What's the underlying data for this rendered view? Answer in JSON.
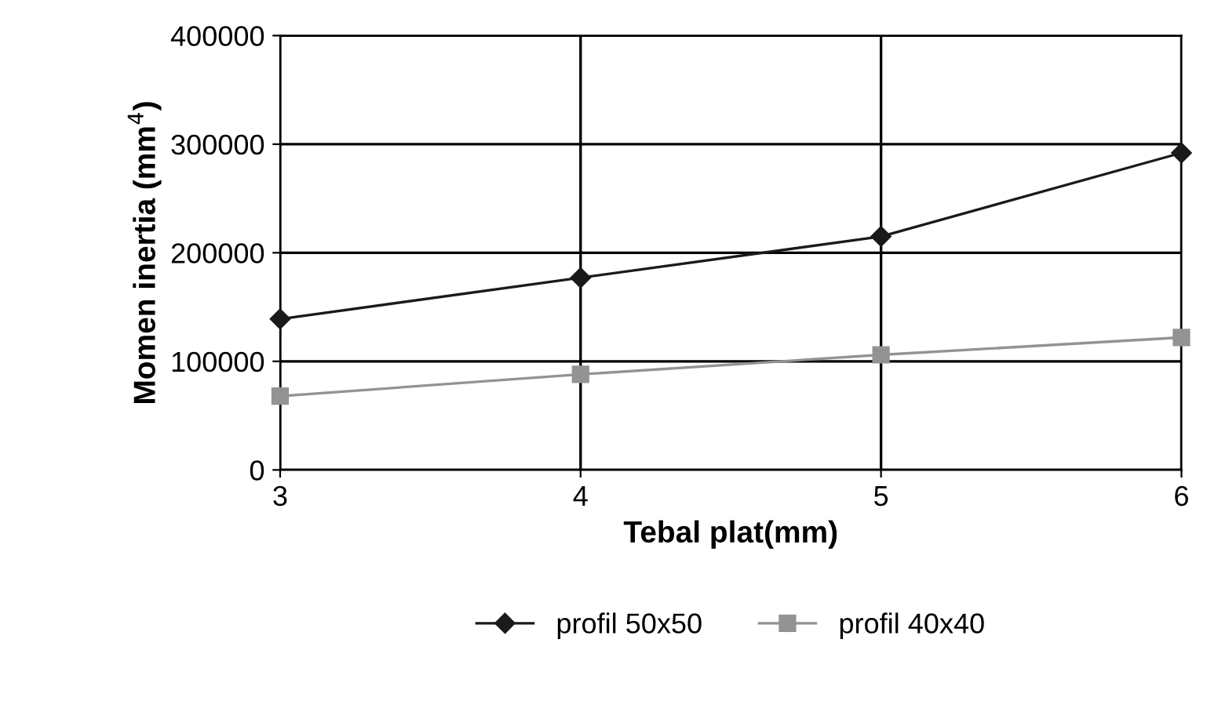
{
  "chart_data": {
    "type": "line",
    "xlabel": "Tebal plat(mm)",
    "ylabel": "Momen inertia (mm$^{4}$)",
    "x": [
      3,
      4,
      5,
      6
    ],
    "xlim": [
      3,
      6
    ],
    "xticks": [
      3,
      4,
      5,
      6
    ],
    "ylim": [
      0,
      400000
    ],
    "yticks": [
      0,
      100000,
      200000,
      300000,
      400000
    ],
    "grid": true,
    "legend": "bottom",
    "line_style": "solid",
    "series": [
      {
        "name": "profil 50x50",
        "color": "#1a1a1a",
        "marker": "diamond",
        "values": [
          139000,
          177000,
          215000,
          292000
        ]
      },
      {
        "name": "profil 40x40",
        "color": "#939393",
        "marker": "square",
        "values": [
          68000,
          88000,
          106000,
          122000
        ]
      }
    ]
  }
}
